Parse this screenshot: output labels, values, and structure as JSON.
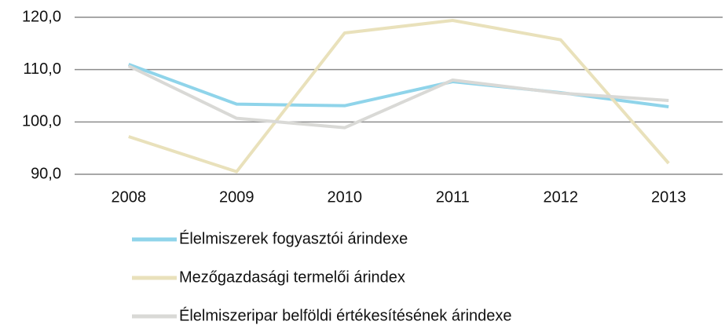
{
  "chart_data": {
    "type": "line",
    "categories": [
      "2008",
      "2009",
      "2010",
      "2011",
      "2012",
      "2013"
    ],
    "series": [
      {
        "name": "Élelmiszerek fogyasztói árindexe",
        "color": "#8fd4ea",
        "values": [
          111.0,
          103.4,
          103.1,
          107.7,
          105.6,
          102.9
        ]
      },
      {
        "name": "Mezőgazdasági termelői árindex",
        "color": "#e9e1bb",
        "values": [
          97.2,
          90.5,
          117.0,
          119.4,
          115.7,
          92.1
        ]
      },
      {
        "name": "Élelmiszeripar belföldi értékesítésének árindexe",
        "color": "#d9d9d6",
        "values": [
          110.7,
          100.7,
          98.9,
          108.0,
          105.5,
          104.1
        ]
      }
    ],
    "ylim": [
      90,
      120
    ],
    "yticks": [
      {
        "value": 90,
        "label": "90,0"
      },
      {
        "value": 100,
        "label": "100,0"
      },
      {
        "value": 110,
        "label": "110,0"
      },
      {
        "value": 120,
        "label": "120,0"
      }
    ],
    "grid": true,
    "legend": "bottom"
  }
}
